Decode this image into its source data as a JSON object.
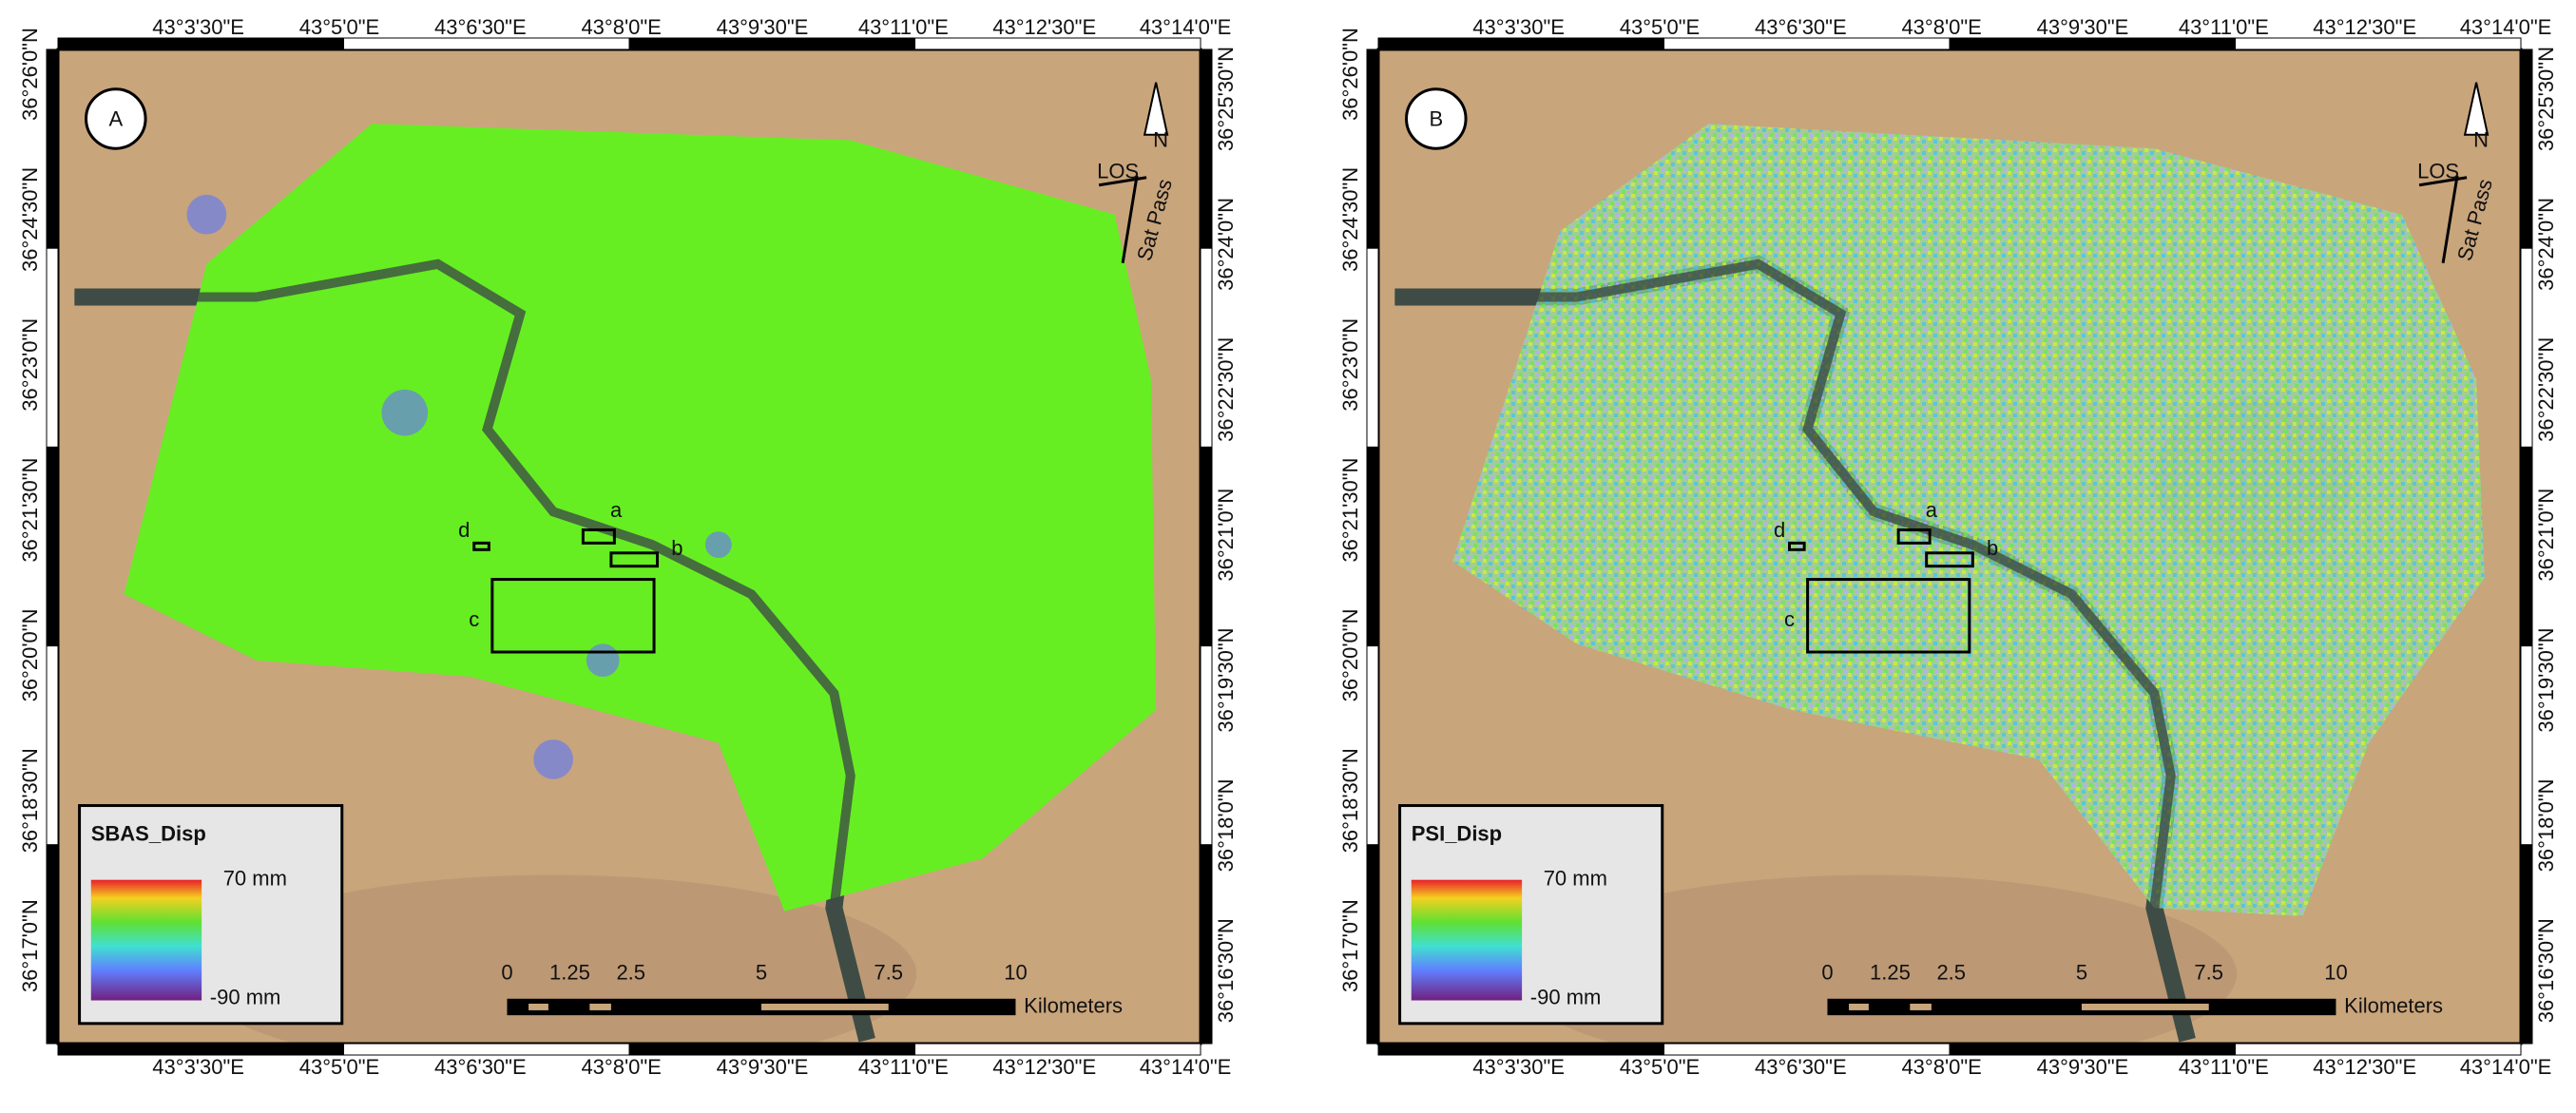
{
  "panels": [
    {
      "label": "A",
      "legend": {
        "title": "SBAS_Disp",
        "max_label": "70 mm",
        "min_label": "-90 mm"
      }
    },
    {
      "label": "B",
      "legend": {
        "title": "PSI_Disp",
        "max_label": "70 mm",
        "min_label": "-90 mm"
      }
    }
  ],
  "boxes": [
    "a",
    "b",
    "c",
    "d"
  ],
  "north": {
    "label": "N",
    "los": "LOS",
    "pass": "Sat Pass"
  },
  "scale_bar": {
    "labels": [
      "0",
      "1.25",
      "2.5",
      "5",
      "7.5",
      "10"
    ],
    "unit": "Kilometers"
  },
  "lon_labels": [
    "43°3'30\"E",
    "43°5'0\"E",
    "43°6'30\"E",
    "43°8'0\"E",
    "43°9'30\"E",
    "43°11'0\"E",
    "43°12'30\"E",
    "43°14'0\"E"
  ],
  "lat_labels_left": [
    "36°26'0\"N",
    "36°24'30\"N",
    "36°23'0\"N",
    "36°21'30\"N",
    "36°20'0\"N",
    "36°18'30\"N",
    "36°17'0\"N"
  ],
  "lat_labels_right": [
    "36°25'30\"N",
    "36°24'0\"N",
    "36°22'30\"N",
    "36°21'0\"N",
    "36°19'30\"N",
    "36°18'0\"N",
    "36°16'30\"N"
  ]
}
